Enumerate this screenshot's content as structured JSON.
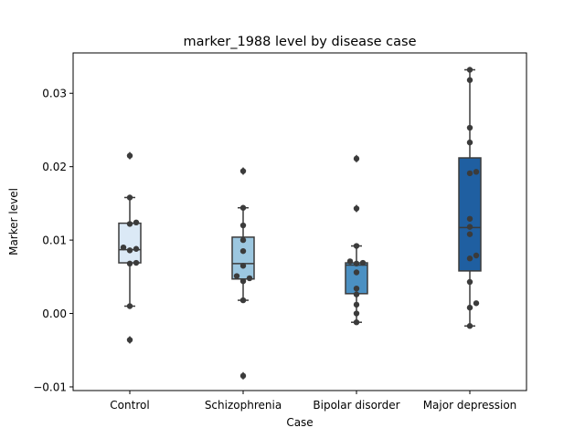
{
  "chart_data": {
    "type": "box",
    "title": "marker_1988 level by disease case",
    "xlabel": "Case",
    "ylabel": "Marker level",
    "ylim": [
      -0.0105,
      0.0355
    ],
    "yticks": [
      -0.01,
      0.0,
      0.01,
      0.02,
      0.03
    ],
    "ytick_labels": [
      "−0.01",
      "0.00",
      "0.01",
      "0.02",
      "0.03"
    ],
    "categories": [
      "Control",
      "Schizophrenia",
      "Bipolar disorder",
      "Major depression"
    ],
    "grid": false,
    "legend": "none",
    "groups": [
      {
        "name": "Control",
        "color": "#dbe9f6",
        "q1": 0.0069,
        "median": 0.0087,
        "q3": 0.0123,
        "whisker_low": 0.001,
        "whisker_high": 0.0158,
        "outliers": [
          0.0215,
          -0.0036
        ],
        "points": [
          0.0215,
          0.0158,
          0.0124,
          0.0122,
          0.009,
          0.0088,
          0.0086,
          0.0069,
          0.0068,
          0.001,
          -0.0036
        ]
      },
      {
        "name": "Schizophrenia",
        "color": "#9cc7e0",
        "q1": 0.0047,
        "median": 0.0068,
        "q3": 0.0104,
        "whisker_low": 0.0018,
        "whisker_high": 0.0144,
        "outliers": [
          0.0194,
          -0.0085
        ],
        "points": [
          0.0194,
          0.0144,
          0.012,
          0.01,
          0.0085,
          0.0065,
          0.0051,
          0.0048,
          0.0044,
          0.0018,
          -0.0085
        ]
      },
      {
        "name": "Bipolar disorder",
        "color": "#4b90c2",
        "q1": 0.0027,
        "median": 0.0066,
        "q3": 0.0069,
        "whisker_low": -0.0012,
        "whisker_high": 0.0092,
        "outliers": [
          0.0211,
          0.0143
        ],
        "points": [
          0.0211,
          0.0143,
          0.0092,
          0.0071,
          0.0069,
          0.0068,
          0.0056,
          0.0034,
          0.0026,
          0.0012,
          0.0,
          -0.0012
        ]
      },
      {
        "name": "Major depression",
        "color": "#1f5fa1",
        "q1": 0.0058,
        "median": 0.0117,
        "q3": 0.0212,
        "whisker_low": -0.0017,
        "whisker_high": 0.0332,
        "outliers": [],
        "points": [
          0.0332,
          0.0318,
          0.0253,
          0.0233,
          0.0193,
          0.0191,
          0.0129,
          0.0118,
          0.0108,
          0.0079,
          0.0075,
          0.0043,
          0.0014,
          0.0008,
          -0.0017
        ]
      }
    ]
  }
}
